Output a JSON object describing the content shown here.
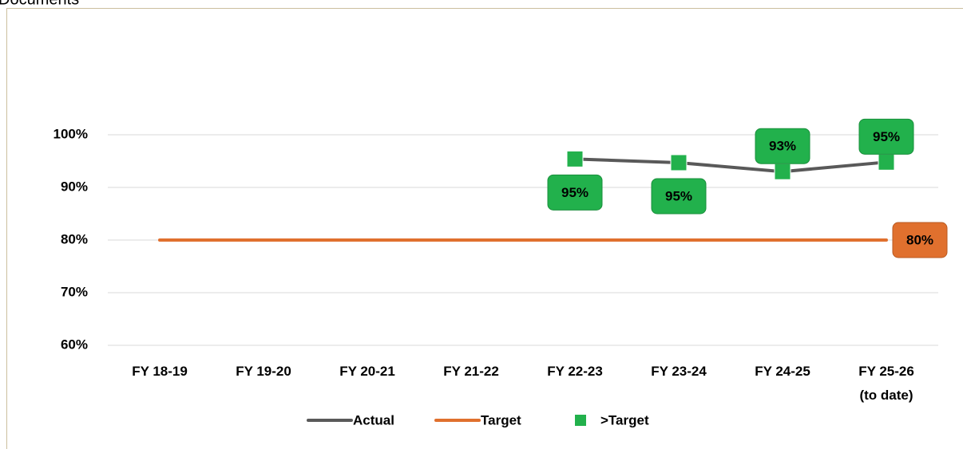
{
  "header": "Documents",
  "chart_data": {
    "type": "line",
    "categories": [
      "FY 18-19",
      "FY 19-20",
      "FY 20-21",
      "FY 21-22",
      "FY 22-23",
      "FY 23-24",
      "FY 24-25",
      "FY 25-26\n(to date)"
    ],
    "series": [
      {
        "name": "Actual",
        "color": "#595959",
        "values": [
          null,
          null,
          null,
          null,
          95.4,
          94.7,
          93.0,
          94.8
        ]
      },
      {
        "name": "Target",
        "color": "#e0702e",
        "values": [
          80,
          80,
          80,
          80,
          80,
          80,
          80,
          80
        ],
        "value_labels": [
          null,
          null,
          null,
          null,
          null,
          null,
          null,
          "80%"
        ]
      },
      {
        "name": ">Target",
        "color": "#22b14c",
        "marker": "square",
        "values": [
          null,
          null,
          null,
          null,
          95.4,
          94.7,
          93.0,
          94.8
        ],
        "value_labels": [
          null,
          null,
          null,
          null,
          "95%",
          "95%",
          "93%",
          "95%"
        ]
      }
    ],
    "ylim": [
      60,
      100
    ],
    "yticks": [
      {
        "value": 60,
        "label": "60%"
      },
      {
        "value": 70,
        "label": "70%"
      },
      {
        "value": 80,
        "label": "80%"
      },
      {
        "value": 90,
        "label": "90%"
      },
      {
        "value": 100,
        "label": "100%"
      }
    ],
    "grid": true,
    "legend": "bottom"
  }
}
